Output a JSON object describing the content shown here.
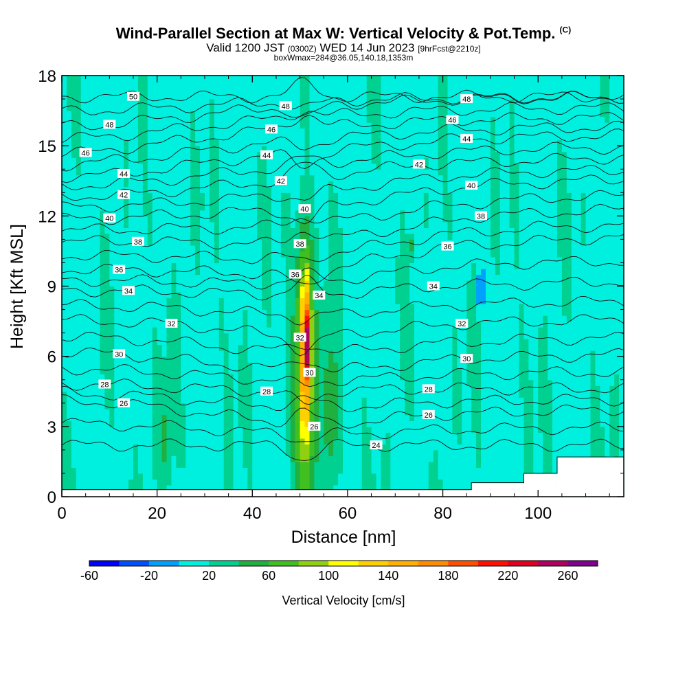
{
  "header": {
    "title": "Wind-Parallel Section at Max W: Vertical Velocity & Pot.Temp.",
    "copyright": "(C)",
    "valid_prefix": "Valid 1200 JST",
    "valid_utc": "(0300Z)",
    "valid_date": "WED 14 Jun 2023",
    "forecast": "[9hrFcst@2210z]",
    "box_info": "boxWmax=284@36.05,140.18,1353m"
  },
  "chart_data": {
    "type": "heatmap",
    "xlabel": "Distance [nm]",
    "ylabel": "Height [Kft MSL]",
    "xlim": [
      0,
      118
    ],
    "ylim": [
      0,
      18
    ],
    "xticks": [
      0,
      20,
      40,
      60,
      80,
      100
    ],
    "yticks": [
      0,
      3,
      6,
      9,
      12,
      15,
      18
    ],
    "colorbar": {
      "label": "Vertical Velocity [cm/s]",
      "tick_labels": [
        "-60",
        "-20",
        "20",
        "60",
        "100",
        "140",
        "180",
        "220",
        "260"
      ],
      "bounds": [
        -60,
        280
      ],
      "step": 20,
      "colors": [
        "#0000ff",
        "#0050ff",
        "#00a0ff",
        "#00f0e0",
        "#00d090",
        "#20b040",
        "#40c020",
        "#90d010",
        "#ffff00",
        "#ffd000",
        "#ffb000",
        "#ff8c00",
        "#ff5000",
        "#ff1000",
        "#e00020",
        "#b00060",
        "#800090"
      ]
    },
    "background_w": 15,
    "updraft_cells": [
      {
        "x": 51.3,
        "y": 6.5,
        "sx": 0.9,
        "sy": 2.6,
        "w": 270
      },
      {
        "x": 51.0,
        "y": 5.5,
        "sx": 1.6,
        "sy": 4.6,
        "w": 150
      },
      {
        "x": 51.0,
        "y": 5.0,
        "sx": 2.6,
        "sy": 6.0,
        "w": 70
      },
      {
        "x": 56.5,
        "y": 3.8,
        "sx": 2.0,
        "sy": 3.6,
        "w": 55
      },
      {
        "x": 21.5,
        "y": 2.5,
        "sx": 1.6,
        "sy": 2.2,
        "w": 45
      },
      {
        "x": 73.5,
        "y": 10.7,
        "sx": 0.7,
        "sy": 0.5,
        "w": 45
      },
      {
        "x": 68.0,
        "y": 1.2,
        "sx": 0.6,
        "sy": 0.8,
        "w": 40
      }
    ],
    "downdraft_cells": [
      {
        "x": 88.0,
        "y": 8.9,
        "sx": 0.6,
        "sy": 0.8,
        "w": -45
      }
    ],
    "theta_contours": [
      {
        "label": "24",
        "label_pos": [
          [
            66,
            2.2
          ]
        ]
      },
      {
        "label": "26",
        "label_pos": [
          [
            13,
            4.0
          ],
          [
            53,
            3.0
          ],
          [
            77,
            3.5
          ]
        ]
      },
      {
        "label": "28",
        "label_pos": [
          [
            9,
            4.8
          ],
          [
            43,
            4.5
          ],
          [
            77,
            4.6
          ]
        ]
      },
      {
        "label": "30",
        "label_pos": [
          [
            12,
            6.1
          ],
          [
            52,
            5.3
          ],
          [
            85,
            5.9
          ]
        ]
      },
      {
        "label": "32",
        "label_pos": [
          [
            23,
            7.4
          ],
          [
            50,
            6.8
          ],
          [
            84,
            7.4
          ]
        ]
      },
      {
        "label": "34",
        "label_pos": [
          [
            14,
            8.8
          ],
          [
            54,
            8.6
          ],
          [
            78,
            9.0
          ]
        ]
      },
      {
        "label": "36",
        "label_pos": [
          [
            12,
            9.7
          ],
          [
            49,
            9.5
          ],
          [
            81,
            10.7
          ]
        ]
      },
      {
        "label": "38",
        "label_pos": [
          [
            16,
            10.9
          ],
          [
            50,
            10.8
          ],
          [
            88,
            12.0
          ]
        ]
      },
      {
        "label": "40",
        "label_pos": [
          [
            10,
            11.9
          ],
          [
            51,
            12.3
          ],
          [
            86,
            13.3
          ]
        ]
      },
      {
        "label": "42",
        "label_pos": [
          [
            13,
            12.9
          ],
          [
            46,
            13.5
          ],
          [
            75,
            14.2
          ]
        ]
      },
      {
        "label": "44",
        "label_pos": [
          [
            13,
            13.8
          ],
          [
            43,
            14.6
          ],
          [
            85,
            15.3
          ]
        ]
      },
      {
        "label": "46",
        "label_pos": [
          [
            5,
            14.7
          ],
          [
            44,
            15.7
          ],
          [
            82,
            16.1
          ]
        ]
      },
      {
        "label": "48",
        "label_pos": [
          [
            10,
            15.9
          ],
          [
            47,
            16.7
          ],
          [
            85,
            17.0
          ]
        ]
      },
      {
        "label": "50",
        "label_pos": [
          [
            15,
            17.1
          ]
        ]
      }
    ],
    "terrain_steps": [
      {
        "x0": 65,
        "x1": 70,
        "h": 0.3
      },
      {
        "x0": 72,
        "x1": 86,
        "h": 0.3
      },
      {
        "x0": 86,
        "x1": 97,
        "h": 0.6
      },
      {
        "x0": 97,
        "x1": 104,
        "h": 1.0
      },
      {
        "x0": 104,
        "x1": 118,
        "h": 1.7
      }
    ],
    "base_level": 0.3
  }
}
